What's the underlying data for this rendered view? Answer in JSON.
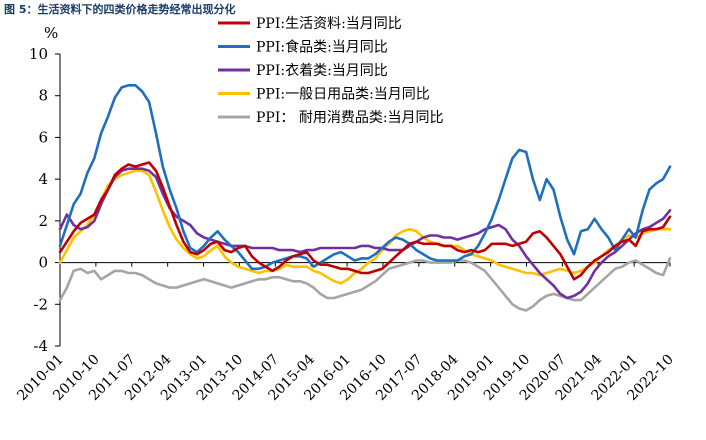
{
  "figure_title": "图 5：生活资料下的四类价格走势经常出现分化",
  "chart_data": {
    "type": "line",
    "unit_label": "%",
    "ylim": [
      -4,
      10
    ],
    "yticks": [
      -4,
      -2,
      0,
      2,
      4,
      6,
      8,
      10
    ],
    "grid": false,
    "legend_position": "top-right",
    "xticks": [
      "2010-01",
      "2010-10",
      "2011-07",
      "2012-04",
      "2013-01",
      "2013-10",
      "2014-07",
      "2015-04",
      "2016-01",
      "2016-10",
      "2017-07",
      "2018-04",
      "2019-01",
      "2019-10",
      "2020-07",
      "2021-04",
      "2022-01",
      "2022-10"
    ],
    "series": [
      {
        "name": "PPI:生活资料:当月同比",
        "color": "#c00000",
        "values": [
          0.5,
          1.0,
          1.5,
          1.9,
          2.1,
          2.3,
          3.0,
          3.5,
          4.2,
          4.5,
          4.7,
          4.6,
          4.7,
          4.8,
          4.4,
          3.6,
          2.7,
          1.8,
          1.0,
          0.5,
          0.4,
          0.6,
          0.9,
          1.0,
          0.6,
          0.5,
          0.7,
          0.8,
          0.3,
          0.0,
          -0.2,
          -0.4,
          -0.2,
          0.1,
          0.3,
          0.4,
          0.5,
          0.1,
          -0.1,
          -0.1,
          -0.2,
          -0.3,
          -0.3,
          -0.4,
          -0.5,
          -0.5,
          -0.4,
          -0.3,
          0.0,
          0.3,
          0.6,
          0.9,
          1.0,
          0.9,
          0.9,
          0.9,
          0.8,
          0.8,
          0.6,
          0.5,
          0.6,
          0.5,
          0.6,
          0.9,
          0.9,
          0.9,
          0.8,
          0.9,
          1.0,
          1.4,
          1.5,
          1.2,
          0.8,
          0.4,
          -0.2,
          -0.8,
          -0.6,
          -0.2,
          0.1,
          0.3,
          0.5,
          0.8,
          1.0,
          1.1,
          0.8,
          1.5,
          1.6,
          1.6,
          1.7,
          2.2
        ]
      },
      {
        "name": "PPI:食品类:当月同比",
        "color": "#1f6fbf",
        "values": [
          0.8,
          1.8,
          2.8,
          3.3,
          4.3,
          5.0,
          6.2,
          7.0,
          7.9,
          8.4,
          8.5,
          8.5,
          8.2,
          7.7,
          6.2,
          4.6,
          3.5,
          2.6,
          1.5,
          0.7,
          0.5,
          0.8,
          1.2,
          1.5,
          1.1,
          0.8,
          0.5,
          0.1,
          -0.3,
          -0.3,
          -0.2,
          0.0,
          0.1,
          0.2,
          0.3,
          0.3,
          0.2,
          -0.2,
          0.0,
          0.2,
          0.4,
          0.5,
          0.3,
          0.1,
          0.2,
          0.2,
          0.4,
          0.7,
          1.0,
          1.2,
          1.1,
          0.9,
          0.6,
          0.4,
          0.2,
          0.1,
          0.1,
          0.1,
          0.1,
          0.3,
          0.4,
          0.8,
          1.4,
          2.1,
          3.0,
          4.0,
          5.0,
          5.4,
          5.3,
          4.0,
          3.0,
          4.0,
          3.5,
          2.2,
          1.1,
          0.4,
          1.5,
          1.6,
          2.1,
          1.6,
          1.2,
          0.6,
          1.1,
          1.6,
          1.2,
          2.5,
          3.5,
          3.8,
          4.0,
          4.6
        ]
      },
      {
        "name": "PPI:衣着类:当月同比",
        "color": "#7030a0",
        "values": [
          1.6,
          2.3,
          1.8,
          1.6,
          1.7,
          2.0,
          2.8,
          3.5,
          4.1,
          4.4,
          4.5,
          4.5,
          4.5,
          4.4,
          4.1,
          3.3,
          2.6,
          2.2,
          2.0,
          1.8,
          1.4,
          1.2,
          1.1,
          1.0,
          0.9,
          0.8,
          0.8,
          0.8,
          0.7,
          0.7,
          0.7,
          0.7,
          0.6,
          0.6,
          0.6,
          0.5,
          0.6,
          0.6,
          0.7,
          0.7,
          0.7,
          0.7,
          0.7,
          0.7,
          0.8,
          0.8,
          0.7,
          0.7,
          0.6,
          0.6,
          0.6,
          0.8,
          1.0,
          1.2,
          1.3,
          1.3,
          1.2,
          1.2,
          1.1,
          1.2,
          1.3,
          1.4,
          1.6,
          1.7,
          1.8,
          1.6,
          1.1,
          0.8,
          0.3,
          -0.1,
          -0.5,
          -0.8,
          -1.1,
          -1.5,
          -1.7,
          -1.6,
          -1.4,
          -1.0,
          -0.4,
          0.0,
          0.3,
          0.5,
          0.8,
          1.1,
          1.4,
          1.6,
          1.7,
          1.9,
          2.1,
          2.5
        ]
      },
      {
        "name": "PPI:一般日用品类:当月同比",
        "color": "#ffc000",
        "values": [
          0.0,
          0.6,
          1.2,
          1.5,
          1.8,
          2.3,
          3.0,
          3.7,
          4.0,
          4.2,
          4.3,
          4.4,
          4.4,
          4.2,
          3.4,
          2.5,
          1.7,
          1.1,
          0.7,
          0.4,
          0.2,
          0.3,
          0.6,
          0.8,
          0.3,
          0.0,
          -0.2,
          -0.3,
          -0.4,
          -0.5,
          -0.4,
          -0.4,
          -0.3,
          -0.1,
          -0.2,
          -0.2,
          -0.2,
          -0.4,
          -0.5,
          -0.7,
          -0.9,
          -1.0,
          -0.8,
          -0.5,
          -0.3,
          0.0,
          0.2,
          0.6,
          0.9,
          1.3,
          1.5,
          1.6,
          1.5,
          1.2,
          1.0,
          0.9,
          0.8,
          0.8,
          0.8,
          0.6,
          0.4,
          0.3,
          0.2,
          0.1,
          -0.1,
          -0.2,
          -0.3,
          -0.4,
          -0.5,
          -0.5,
          -0.6,
          -0.5,
          -0.4,
          -0.3,
          -0.4,
          -0.5,
          -0.4,
          -0.2,
          0.0,
          0.3,
          0.6,
          0.8,
          1.1,
          1.3,
          1.2,
          1.4,
          1.5,
          1.6,
          1.6,
          1.6
        ]
      },
      {
        "name": "PPI： 耐用消费品类:当月同比",
        "color": "#a5a5a5",
        "values": [
          -1.8,
          -1.2,
          -0.4,
          -0.3,
          -0.5,
          -0.4,
          -0.8,
          -0.6,
          -0.4,
          -0.4,
          -0.5,
          -0.5,
          -0.6,
          -0.8,
          -1.0,
          -1.1,
          -1.2,
          -1.2,
          -1.1,
          -1.0,
          -0.9,
          -0.8,
          -0.9,
          -1.0,
          -1.1,
          -1.2,
          -1.1,
          -1.0,
          -0.9,
          -0.8,
          -0.8,
          -0.7,
          -0.7,
          -0.8,
          -0.9,
          -0.9,
          -1.0,
          -1.2,
          -1.5,
          -1.7,
          -1.7,
          -1.6,
          -1.5,
          -1.4,
          -1.3,
          -1.1,
          -0.9,
          -0.6,
          -0.3,
          -0.2,
          -0.1,
          0.0,
          0.1,
          0.1,
          0.0,
          0.0,
          0.0,
          0.0,
          0.1,
          0.1,
          0.0,
          -0.2,
          -0.4,
          -0.8,
          -1.2,
          -1.6,
          -2.0,
          -2.2,
          -2.3,
          -2.1,
          -1.8,
          -1.6,
          -1.5,
          -1.6,
          -1.7,
          -1.8,
          -1.8,
          -1.5,
          -1.2,
          -0.9,
          -0.6,
          -0.3,
          -0.2,
          0.0,
          0.1,
          -0.1,
          -0.3,
          -0.5,
          -0.6,
          0.2
        ]
      }
    ]
  }
}
